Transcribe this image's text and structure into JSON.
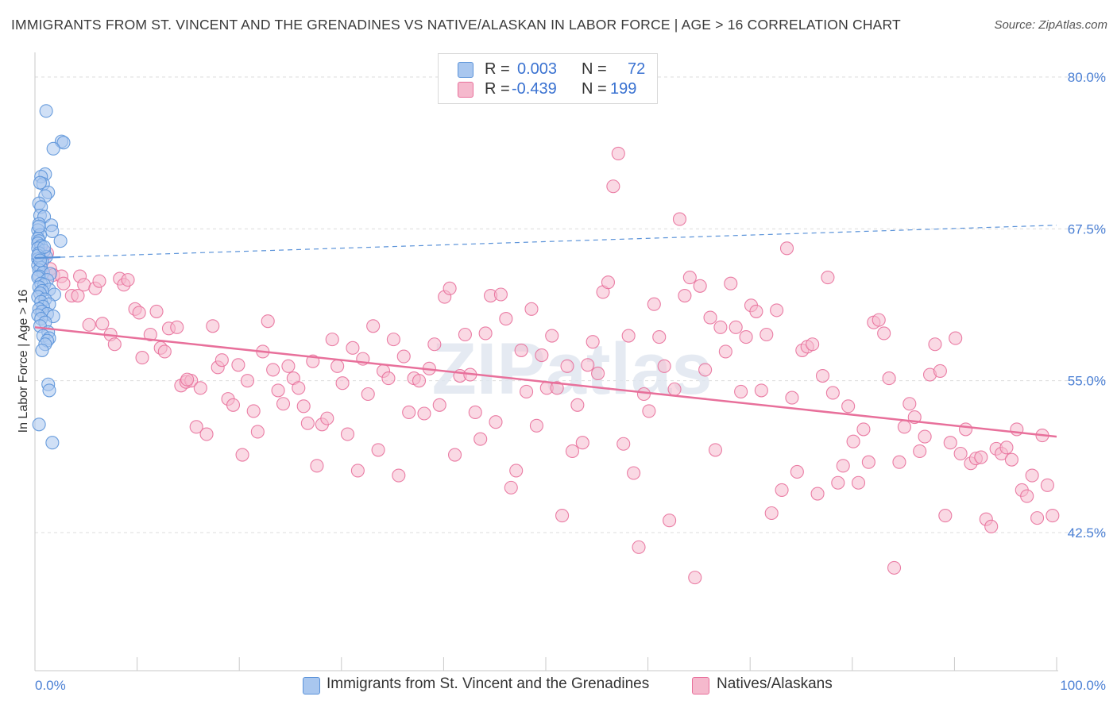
{
  "header": {
    "title": "IMMIGRANTS FROM ST. VINCENT AND THE GRENADINES VS NATIVE/ALASKAN IN LABOR FORCE | AGE > 16 CORRELATION CHART",
    "source": "Source: ZipAtlas.com"
  },
  "legend_top": {
    "rows": [
      {
        "r_label": "R =",
        "r_value": "0.003",
        "n_label": "N =",
        "n_value": "72"
      },
      {
        "r_label": "R =",
        "r_value": "-0.439",
        "n_label": "N =",
        "n_value": "199"
      }
    ]
  },
  "watermark": "ZIPatlas",
  "chart_data": {
    "type": "scatter",
    "title": "IMMIGRANTS FROM ST. VINCENT AND THE GRENADINES VS NATIVE/ALASKAN IN LABOR FORCE | AGE > 16 CORRELATION CHART",
    "xlabel": "",
    "ylabel": "In Labor Force | Age > 16",
    "xlim": [
      0,
      100
    ],
    "ylim": [
      30,
      82.5
    ],
    "x_tick_labels": [
      "0.0%",
      "100.0%"
    ],
    "y_ticks": [
      42.5,
      55.0,
      67.5,
      80.0
    ],
    "y_tick_labels": [
      "42.5%",
      "55.0%",
      "67.5%",
      "80.0%"
    ],
    "grid": true,
    "legend_position": "bottom",
    "colors": {
      "blue": "#5b93d9",
      "blue_fill": "#a9c7ef",
      "pink": "#e8709b",
      "pink_fill": "#f5b9cd"
    },
    "series": [
      {
        "name": "Immigrants from St. Vincent and the Grenadines",
        "color": "#5b93d9",
        "r": 0.003,
        "n": 72,
        "trend": {
          "x": [
            0.0,
            100.0
          ],
          "y": [
            65.1,
            67.8
          ],
          "solid_until_x": 2.5
        },
        "points": [
          [
            1.1,
            77.2
          ],
          [
            2.6,
            74.7
          ],
          [
            2.8,
            74.6
          ],
          [
            1.8,
            74.1
          ],
          [
            1.0,
            72.0
          ],
          [
            0.6,
            71.8
          ],
          [
            0.8,
            71.2
          ],
          [
            0.5,
            71.3
          ],
          [
            1.3,
            70.5
          ],
          [
            1.0,
            70.2
          ],
          [
            0.4,
            69.6
          ],
          [
            0.6,
            69.3
          ],
          [
            0.5,
            68.6
          ],
          [
            0.9,
            68.5
          ],
          [
            0.4,
            67.9
          ],
          [
            1.6,
            67.8
          ],
          [
            0.3,
            67.4
          ],
          [
            1.7,
            67.3
          ],
          [
            0.5,
            67.0
          ],
          [
            0.3,
            66.7
          ],
          [
            0.4,
            66.5
          ],
          [
            2.5,
            66.5
          ],
          [
            0.3,
            66.3
          ],
          [
            0.6,
            66.1
          ],
          [
            0.3,
            65.9
          ],
          [
            0.9,
            65.7
          ],
          [
            0.4,
            65.5
          ],
          [
            1.1,
            65.2
          ],
          [
            0.3,
            65.0
          ],
          [
            0.7,
            64.8
          ],
          [
            0.3,
            64.5
          ],
          [
            0.6,
            64.3
          ],
          [
            0.4,
            64.1
          ],
          [
            0.8,
            63.9
          ],
          [
            1.5,
            63.8
          ],
          [
            0.4,
            63.6
          ],
          [
            0.3,
            63.5
          ],
          [
            1.2,
            63.3
          ],
          [
            0.6,
            63.0
          ],
          [
            0.9,
            62.9
          ],
          [
            0.4,
            62.7
          ],
          [
            1.4,
            62.5
          ],
          [
            0.7,
            62.4
          ],
          [
            0.5,
            62.2
          ],
          [
            1.9,
            62.1
          ],
          [
            0.3,
            61.9
          ],
          [
            1.0,
            61.7
          ],
          [
            0.6,
            61.5
          ],
          [
            1.4,
            61.3
          ],
          [
            0.8,
            61.1
          ],
          [
            0.4,
            60.9
          ],
          [
            0.7,
            60.7
          ],
          [
            1.2,
            60.5
          ],
          [
            0.3,
            60.4
          ],
          [
            1.8,
            60.3
          ],
          [
            0.6,
            60.1
          ],
          [
            1.0,
            59.8
          ],
          [
            0.5,
            59.5
          ],
          [
            1.3,
            59.0
          ],
          [
            0.8,
            58.7
          ],
          [
            1.4,
            58.5
          ],
          [
            1.2,
            58.3
          ],
          [
            1.0,
            58.0
          ],
          [
            0.7,
            57.5
          ],
          [
            1.3,
            54.7
          ],
          [
            1.4,
            54.2
          ],
          [
            0.4,
            51.4
          ],
          [
            1.7,
            49.9
          ],
          [
            0.3,
            65.3
          ],
          [
            0.5,
            64.9
          ],
          [
            0.9,
            66.0
          ],
          [
            0.4,
            67.7
          ]
        ]
      },
      {
        "name": "Natives/Alaskans",
        "color": "#e8709b",
        "r": -0.439,
        "n": 199,
        "trend": {
          "x": [
            0.0,
            100.0
          ],
          "y": [
            59.4,
            50.4
          ]
        },
        "points": [
          [
            1.2,
            65.5
          ],
          [
            1.5,
            64.2
          ],
          [
            1.8,
            63.7
          ],
          [
            2.6,
            63.6
          ],
          [
            2.8,
            63.0
          ],
          [
            3.6,
            62.0
          ],
          [
            4.2,
            62.0
          ],
          [
            4.4,
            63.6
          ],
          [
            4.8,
            62.9
          ],
          [
            5.3,
            59.6
          ],
          [
            5.9,
            62.6
          ],
          [
            6.3,
            63.2
          ],
          [
            6.6,
            59.7
          ],
          [
            7.4,
            58.8
          ],
          [
            7.8,
            58.0
          ],
          [
            8.3,
            63.4
          ],
          [
            8.7,
            62.9
          ],
          [
            9.1,
            63.3
          ],
          [
            9.8,
            60.9
          ],
          [
            10.2,
            60.6
          ],
          [
            10.5,
            56.9
          ],
          [
            11.3,
            58.8
          ],
          [
            11.9,
            60.7
          ],
          [
            12.3,
            57.7
          ],
          [
            12.7,
            57.4
          ],
          [
            13.1,
            59.3
          ],
          [
            13.9,
            59.4
          ],
          [
            14.3,
            54.6
          ],
          [
            14.8,
            54.9
          ],
          [
            15.3,
            55.0
          ],
          [
            15.8,
            51.2
          ],
          [
            16.2,
            54.4
          ],
          [
            16.8,
            50.6
          ],
          [
            17.4,
            59.5
          ],
          [
            17.9,
            56.1
          ],
          [
            18.3,
            56.7
          ],
          [
            18.9,
            53.5
          ],
          [
            19.4,
            53.0
          ],
          [
            19.9,
            56.3
          ],
          [
            20.3,
            48.9
          ],
          [
            20.8,
            55.0
          ],
          [
            21.4,
            52.5
          ],
          [
            21.8,
            50.8
          ],
          [
            22.3,
            57.4
          ],
          [
            22.8,
            59.9
          ],
          [
            23.3,
            55.9
          ],
          [
            23.8,
            54.2
          ],
          [
            24.3,
            53.1
          ],
          [
            24.8,
            56.2
          ],
          [
            25.3,
            55.2
          ],
          [
            25.8,
            54.4
          ],
          [
            26.3,
            52.9
          ],
          [
            26.7,
            51.5
          ],
          [
            27.2,
            56.6
          ],
          [
            27.6,
            48.0
          ],
          [
            28.1,
            51.4
          ],
          [
            28.6,
            51.9
          ],
          [
            29.1,
            58.4
          ],
          [
            29.6,
            56.2
          ],
          [
            30.1,
            54.8
          ],
          [
            30.6,
            50.6
          ],
          [
            31.1,
            57.7
          ],
          [
            31.6,
            47.6
          ],
          [
            32.1,
            56.8
          ],
          [
            32.6,
            53.9
          ],
          [
            33.1,
            59.5
          ],
          [
            33.6,
            49.3
          ],
          [
            34.1,
            55.8
          ],
          [
            34.6,
            55.2
          ],
          [
            35.1,
            58.4
          ],
          [
            35.6,
            47.2
          ],
          [
            36.1,
            57.0
          ],
          [
            36.6,
            52.4
          ],
          [
            37.1,
            55.2
          ],
          [
            37.6,
            55.0
          ],
          [
            38.1,
            52.3
          ],
          [
            38.6,
            56.0
          ],
          [
            39.1,
            58.0
          ],
          [
            39.6,
            53.0
          ],
          [
            40.1,
            61.9
          ],
          [
            40.6,
            62.6
          ],
          [
            41.1,
            48.9
          ],
          [
            41.6,
            55.4
          ],
          [
            42.1,
            58.8
          ],
          [
            42.6,
            55.5
          ],
          [
            43.1,
            52.4
          ],
          [
            43.6,
            50.2
          ],
          [
            44.1,
            58.9
          ],
          [
            44.6,
            62.0
          ],
          [
            45.1,
            51.6
          ],
          [
            45.6,
            62.1
          ],
          [
            46.1,
            60.1
          ],
          [
            46.6,
            46.2
          ],
          [
            47.1,
            47.6
          ],
          [
            47.6,
            57.5
          ],
          [
            48.1,
            54.1
          ],
          [
            48.6,
            60.9
          ],
          [
            49.1,
            51.3
          ],
          [
            49.6,
            57.1
          ],
          [
            50.1,
            54.4
          ],
          [
            50.6,
            58.7
          ],
          [
            51.1,
            54.4
          ],
          [
            51.6,
            43.9
          ],
          [
            52.1,
            56.2
          ],
          [
            52.6,
            49.2
          ],
          [
            53.1,
            53.0
          ],
          [
            53.6,
            49.9
          ],
          [
            54.1,
            56.3
          ],
          [
            54.6,
            58.2
          ],
          [
            55.1,
            55.6
          ],
          [
            55.6,
            62.3
          ],
          [
            56.1,
            63.1
          ],
          [
            56.6,
            71.0
          ],
          [
            57.1,
            73.7
          ],
          [
            57.6,
            49.8
          ],
          [
            58.1,
            58.7
          ],
          [
            58.6,
            47.4
          ],
          [
            59.1,
            41.3
          ],
          [
            59.6,
            53.9
          ],
          [
            60.1,
            52.5
          ],
          [
            60.6,
            61.3
          ],
          [
            61.1,
            58.6
          ],
          [
            61.6,
            56.2
          ],
          [
            62.1,
            43.5
          ],
          [
            62.6,
            54.3
          ],
          [
            63.1,
            68.3
          ],
          [
            63.6,
            62.0
          ],
          [
            64.1,
            63.5
          ],
          [
            64.6,
            38.8
          ],
          [
            65.1,
            62.8
          ],
          [
            65.6,
            55.9
          ],
          [
            66.1,
            60.2
          ],
          [
            66.6,
            49.3
          ],
          [
            67.1,
            59.4
          ],
          [
            67.6,
            57.4
          ],
          [
            68.1,
            63.0
          ],
          [
            68.6,
            59.4
          ],
          [
            69.1,
            54.1
          ],
          [
            69.6,
            58.6
          ],
          [
            70.1,
            61.2
          ],
          [
            70.6,
            60.7
          ],
          [
            71.1,
            54.2
          ],
          [
            71.6,
            58.8
          ],
          [
            72.1,
            44.1
          ],
          [
            72.6,
            60.8
          ],
          [
            73.1,
            46.0
          ],
          [
            73.6,
            65.9
          ],
          [
            74.1,
            53.6
          ],
          [
            74.6,
            47.5
          ],
          [
            75.1,
            57.5
          ],
          [
            75.6,
            57.8
          ],
          [
            76.1,
            58.0
          ],
          [
            76.6,
            45.7
          ],
          [
            77.1,
            55.4
          ],
          [
            77.6,
            63.5
          ],
          [
            78.1,
            54.0
          ],
          [
            78.6,
            46.6
          ],
          [
            79.1,
            48.0
          ],
          [
            79.6,
            52.9
          ],
          [
            80.1,
            50.0
          ],
          [
            80.6,
            46.6
          ],
          [
            81.1,
            51.0
          ],
          [
            81.6,
            48.3
          ],
          [
            82.1,
            59.8
          ],
          [
            82.6,
            60.0
          ],
          [
            83.1,
            58.9
          ],
          [
            83.6,
            55.2
          ],
          [
            84.1,
            39.6
          ],
          [
            84.6,
            48.3
          ],
          [
            85.1,
            51.2
          ],
          [
            85.6,
            53.1
          ],
          [
            86.1,
            52.0
          ],
          [
            86.6,
            49.2
          ],
          [
            87.1,
            50.4
          ],
          [
            87.6,
            55.5
          ],
          [
            88.1,
            58.0
          ],
          [
            88.6,
            55.8
          ],
          [
            89.1,
            43.9
          ],
          [
            89.6,
            49.9
          ],
          [
            90.1,
            58.5
          ],
          [
            90.6,
            49.0
          ],
          [
            91.1,
            51.0
          ],
          [
            91.6,
            48.2
          ],
          [
            92.1,
            48.6
          ],
          [
            92.6,
            48.7
          ],
          [
            93.1,
            43.6
          ],
          [
            93.6,
            43.0
          ],
          [
            94.1,
            49.4
          ],
          [
            94.6,
            49.0
          ],
          [
            95.1,
            49.5
          ],
          [
            95.6,
            48.5
          ],
          [
            96.1,
            51.0
          ],
          [
            96.6,
            46.0
          ],
          [
            97.1,
            45.5
          ],
          [
            97.6,
            47.2
          ],
          [
            98.1,
            43.7
          ],
          [
            98.6,
            50.5
          ],
          [
            99.1,
            46.4
          ],
          [
            99.6,
            43.9
          ],
          [
            14.9,
            55.1
          ]
        ]
      }
    ]
  },
  "legend_bottom": {
    "items": [
      {
        "label": "Immigrants from St. Vincent and the Grenadines"
      },
      {
        "label": "Natives/Alaskans"
      }
    ]
  }
}
